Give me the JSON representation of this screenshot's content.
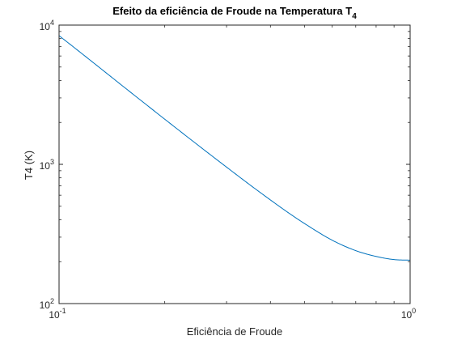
{
  "chart_data": {
    "type": "line",
    "title": "Efeito da eficiência de Froude na Temperatura T",
    "title_subscript": "4",
    "xlabel": "Eficiência de Froude",
    "ylabel": "T4 (K)",
    "xscale": "log",
    "yscale": "log",
    "xlim": [
      0.1,
      1
    ],
    "ylim": [
      100,
      10000
    ],
    "grid": false,
    "box": true,
    "x_ticks": [
      {
        "base": "10",
        "exp": "-1"
      },
      {
        "base": "10",
        "exp": "0"
      }
    ],
    "y_ticks": [
      {
        "base": "10",
        "exp": "2"
      },
      {
        "base": "10",
        "exp": "3"
      },
      {
        "base": "10",
        "exp": "4"
      }
    ],
    "series": [
      {
        "color": "#0072BD",
        "x": [
          0.1,
          0.12,
          0.15,
          0.2,
          0.25,
          0.3,
          0.35,
          0.4,
          0.45,
          0.5,
          0.6,
          0.7,
          0.8,
          0.9,
          1.0
        ],
        "y": [
          8400,
          5850,
          3740,
          2110,
          1360,
          955,
          711,
          555,
          449,
          376,
          285,
          240,
          218,
          207,
          205
        ]
      }
    ]
  }
}
